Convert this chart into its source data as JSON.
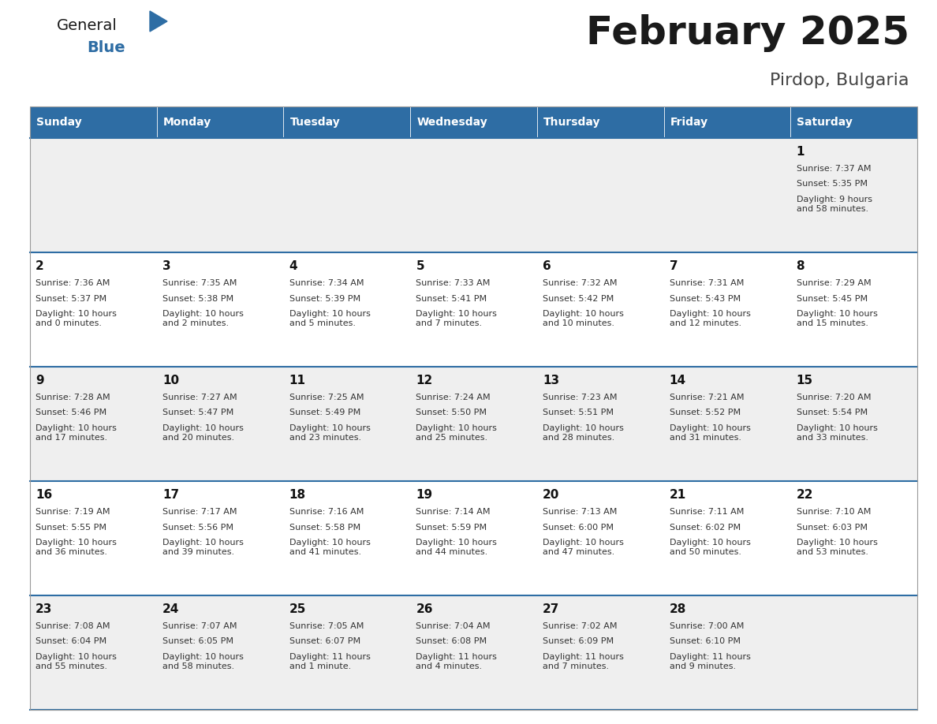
{
  "title": "February 2025",
  "subtitle": "Pirdop, Bulgaria",
  "header_bg": "#2E6DA4",
  "header_text_color": "#FFFFFF",
  "cell_bg_odd": "#EFEFEF",
  "cell_bg_even": "#FFFFFF",
  "row_line_color": "#2E6DA4",
  "text_color": "#333333",
  "days_of_week": [
    "Sunday",
    "Monday",
    "Tuesday",
    "Wednesday",
    "Thursday",
    "Friday",
    "Saturday"
  ],
  "calendar_data": [
    [
      null,
      null,
      null,
      null,
      null,
      null,
      {
        "day": 1,
        "sunrise": "7:37 AM",
        "sunset": "5:35 PM",
        "daylight": "9 hours\nand 58 minutes."
      }
    ],
    [
      {
        "day": 2,
        "sunrise": "7:36 AM",
        "sunset": "5:37 PM",
        "daylight": "10 hours\nand 0 minutes."
      },
      {
        "day": 3,
        "sunrise": "7:35 AM",
        "sunset": "5:38 PM",
        "daylight": "10 hours\nand 2 minutes."
      },
      {
        "day": 4,
        "sunrise": "7:34 AM",
        "sunset": "5:39 PM",
        "daylight": "10 hours\nand 5 minutes."
      },
      {
        "day": 5,
        "sunrise": "7:33 AM",
        "sunset": "5:41 PM",
        "daylight": "10 hours\nand 7 minutes."
      },
      {
        "day": 6,
        "sunrise": "7:32 AM",
        "sunset": "5:42 PM",
        "daylight": "10 hours\nand 10 minutes."
      },
      {
        "day": 7,
        "sunrise": "7:31 AM",
        "sunset": "5:43 PM",
        "daylight": "10 hours\nand 12 minutes."
      },
      {
        "day": 8,
        "sunrise": "7:29 AM",
        "sunset": "5:45 PM",
        "daylight": "10 hours\nand 15 minutes."
      }
    ],
    [
      {
        "day": 9,
        "sunrise": "7:28 AM",
        "sunset": "5:46 PM",
        "daylight": "10 hours\nand 17 minutes."
      },
      {
        "day": 10,
        "sunrise": "7:27 AM",
        "sunset": "5:47 PM",
        "daylight": "10 hours\nand 20 minutes."
      },
      {
        "day": 11,
        "sunrise": "7:25 AM",
        "sunset": "5:49 PM",
        "daylight": "10 hours\nand 23 minutes."
      },
      {
        "day": 12,
        "sunrise": "7:24 AM",
        "sunset": "5:50 PM",
        "daylight": "10 hours\nand 25 minutes."
      },
      {
        "day": 13,
        "sunrise": "7:23 AM",
        "sunset": "5:51 PM",
        "daylight": "10 hours\nand 28 minutes."
      },
      {
        "day": 14,
        "sunrise": "7:21 AM",
        "sunset": "5:52 PM",
        "daylight": "10 hours\nand 31 minutes."
      },
      {
        "day": 15,
        "sunrise": "7:20 AM",
        "sunset": "5:54 PM",
        "daylight": "10 hours\nand 33 minutes."
      }
    ],
    [
      {
        "day": 16,
        "sunrise": "7:19 AM",
        "sunset": "5:55 PM",
        "daylight": "10 hours\nand 36 minutes."
      },
      {
        "day": 17,
        "sunrise": "7:17 AM",
        "sunset": "5:56 PM",
        "daylight": "10 hours\nand 39 minutes."
      },
      {
        "day": 18,
        "sunrise": "7:16 AM",
        "sunset": "5:58 PM",
        "daylight": "10 hours\nand 41 minutes."
      },
      {
        "day": 19,
        "sunrise": "7:14 AM",
        "sunset": "5:59 PM",
        "daylight": "10 hours\nand 44 minutes."
      },
      {
        "day": 20,
        "sunrise": "7:13 AM",
        "sunset": "6:00 PM",
        "daylight": "10 hours\nand 47 minutes."
      },
      {
        "day": 21,
        "sunrise": "7:11 AM",
        "sunset": "6:02 PM",
        "daylight": "10 hours\nand 50 minutes."
      },
      {
        "day": 22,
        "sunrise": "7:10 AM",
        "sunset": "6:03 PM",
        "daylight": "10 hours\nand 53 minutes."
      }
    ],
    [
      {
        "day": 23,
        "sunrise": "7:08 AM",
        "sunset": "6:04 PM",
        "daylight": "10 hours\nand 55 minutes."
      },
      {
        "day": 24,
        "sunrise": "7:07 AM",
        "sunset": "6:05 PM",
        "daylight": "10 hours\nand 58 minutes."
      },
      {
        "day": 25,
        "sunrise": "7:05 AM",
        "sunset": "6:07 PM",
        "daylight": "11 hours\nand 1 minute."
      },
      {
        "day": 26,
        "sunrise": "7:04 AM",
        "sunset": "6:08 PM",
        "daylight": "11 hours\nand 4 minutes."
      },
      {
        "day": 27,
        "sunrise": "7:02 AM",
        "sunset": "6:09 PM",
        "daylight": "11 hours\nand 7 minutes."
      },
      {
        "day": 28,
        "sunrise": "7:00 AM",
        "sunset": "6:10 PM",
        "daylight": "11 hours\nand 9 minutes."
      },
      null
    ]
  ]
}
